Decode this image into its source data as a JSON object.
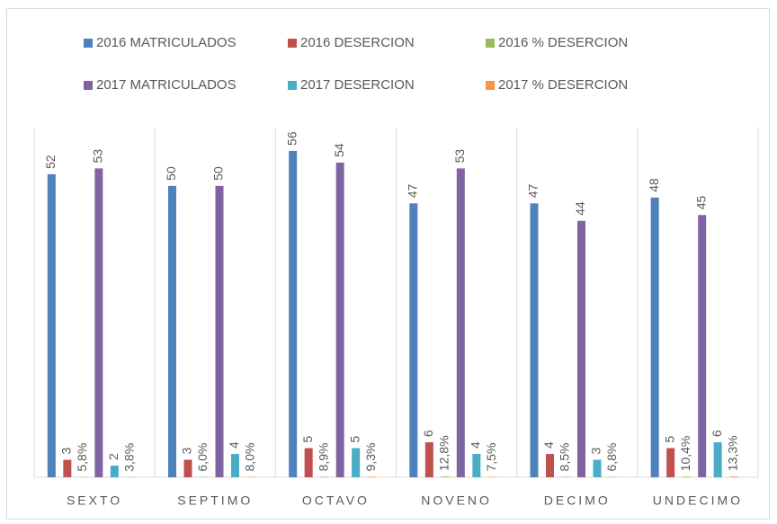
{
  "chart_data": {
    "type": "bar",
    "categories": [
      "SEXTO",
      "SEPTIMO",
      "OCTAVO",
      "NOVENO",
      "DECIMO",
      "UNDECIMO"
    ],
    "ylim": [
      0,
      60
    ],
    "series": [
      {
        "name": "2016 MATRICULADOS",
        "color": "#4f81bd",
        "values": [
          52,
          50,
          56,
          47,
          47,
          48
        ]
      },
      {
        "name": "2016 DESERCION",
        "color": "#c0504d",
        "values": [
          3,
          3,
          5,
          6,
          4,
          5
        ]
      },
      {
        "name": "2016 % DESERCION",
        "color": "#9bbb59",
        "values": [
          0.058,
          0.06,
          0.089,
          0.128,
          0.085,
          0.104
        ],
        "value_labels": [
          "5,8%",
          "6,0%",
          "8,9%",
          "12,8%",
          "8,5%",
          "10,4%"
        ]
      },
      {
        "name": "2017 MATRICULADOS",
        "color": "#8064a2",
        "values": [
          53,
          50,
          54,
          53,
          44,
          45
        ]
      },
      {
        "name": "2017 DESERCION",
        "color": "#4bacc6",
        "values": [
          2,
          4,
          5,
          4,
          3,
          6
        ]
      },
      {
        "name": "2017 % DESERCION",
        "color": "#f79646",
        "values": [
          0.038,
          0.08,
          0.093,
          0.075,
          0.068,
          0.133
        ],
        "value_labels": [
          "3,8%",
          "8,0%",
          "9,3%",
          "7,5%",
          "6,8%",
          "13,3%"
        ]
      }
    ]
  }
}
